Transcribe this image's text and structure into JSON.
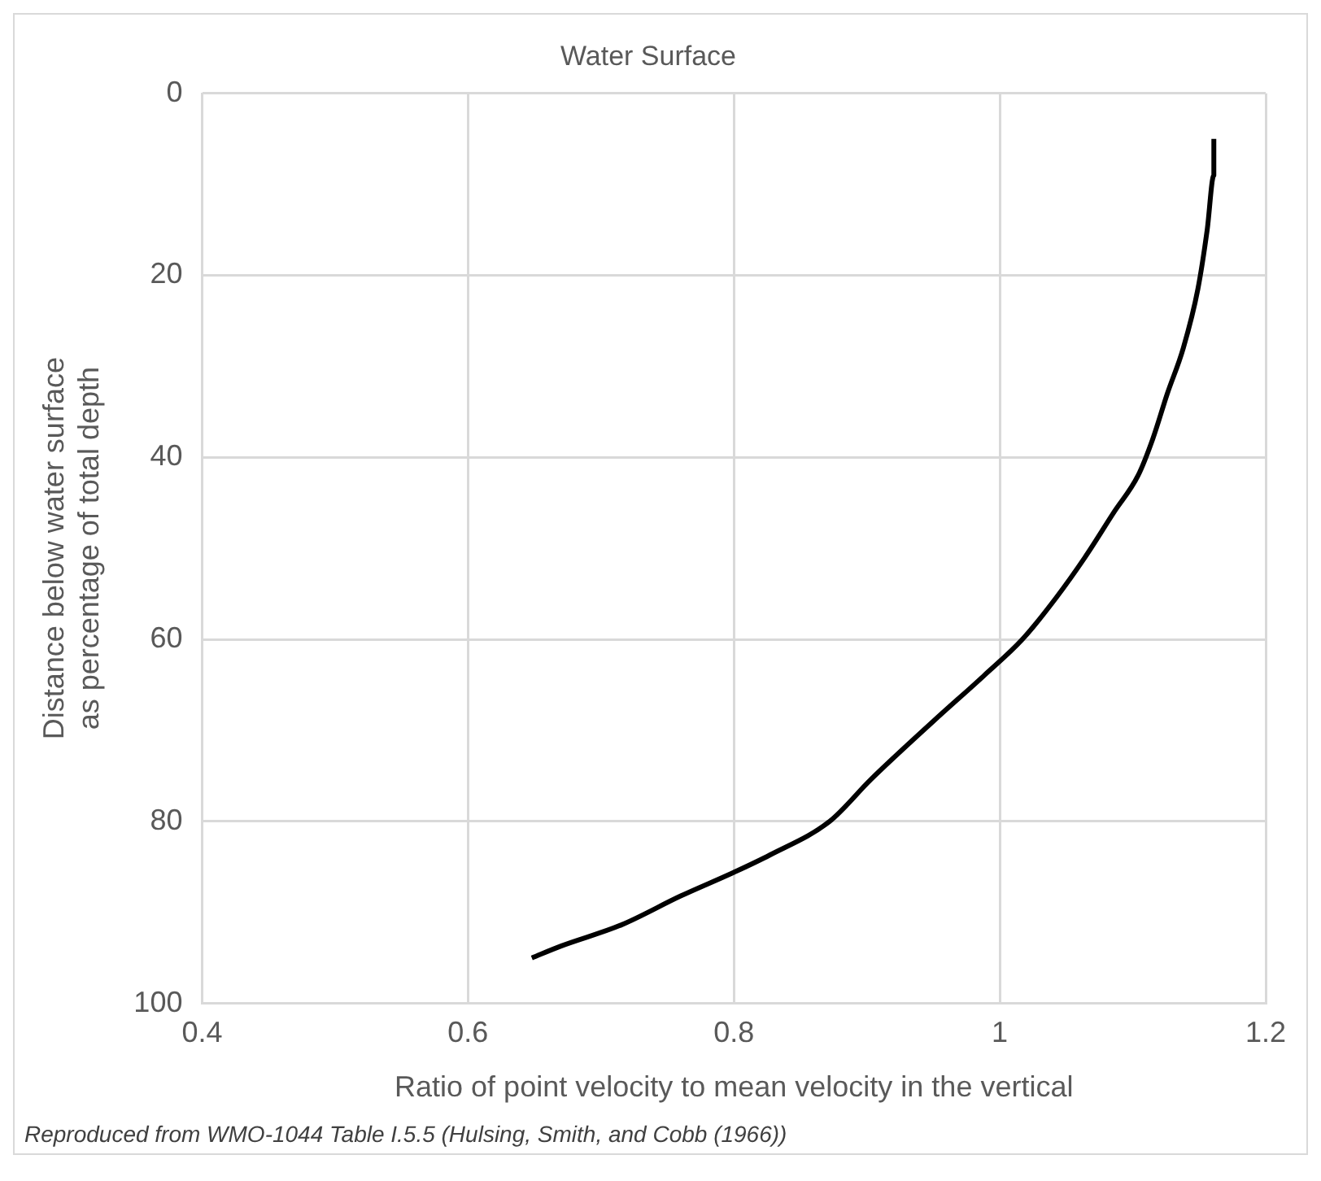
{
  "chart_data": {
    "type": "line",
    "title": "Water Surface",
    "xlabel": "Ratio of point velocity to mean velocity in the vertical",
    "ylabel": "Distance below water surface\nas percentage of total depth",
    "annotations": [
      "Reproduced from WMO-1044 Table I.5.5 (Hulsing, Smith, and Cobb (1966))"
    ],
    "x": [
      1.161,
      1.161,
      1.156,
      1.149,
      1.138,
      1.126,
      1.115,
      1.104,
      1.086,
      1.064,
      1.042,
      1.017,
      0.988,
      0.95,
      0.903,
      0.872,
      0.827,
      0.8,
      0.76,
      0.715,
      0.67,
      0.648
    ],
    "series": [
      {
        "color": "#000000",
        "values": [
          5,
          9,
          15,
          21.5,
          28,
          33,
          38,
          42,
          46,
          51,
          55.5,
          60,
          64,
          69,
          75.4,
          80,
          83.7,
          85.6,
          88.2,
          91.4,
          93.7,
          95
        ]
      }
    ],
    "xlim": [
      0.4,
      1.2
    ],
    "xticks": [
      0.4,
      0.6,
      0.8,
      1,
      1.2
    ],
    "ylim": [
      100,
      0
    ],
    "yticks": [
      0,
      20,
      40,
      60,
      80,
      100
    ],
    "grid": true,
    "legend": false,
    "marker": "none",
    "line_style": "solid"
  }
}
